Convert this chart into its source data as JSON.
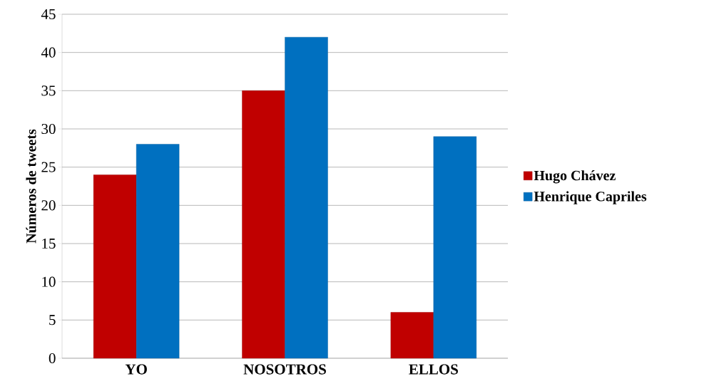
{
  "chart_data": {
    "type": "bar",
    "ylabel": "Números de tweets",
    "categories": [
      "YO",
      "NOSOTROS",
      "ELLOS"
    ],
    "series": [
      {
        "name": "Hugo Chávez",
        "color": "#c00000",
        "values": [
          24,
          35,
          6
        ]
      },
      {
        "name": "Henrique Capriles",
        "color": "#0070c0",
        "values": [
          28,
          42,
          29
        ]
      }
    ],
    "ylim": [
      0,
      45
    ],
    "yticks": [
      0,
      5,
      10,
      15,
      20,
      25,
      30,
      35,
      40,
      45
    ],
    "grid": "y",
    "legend": "right"
  }
}
